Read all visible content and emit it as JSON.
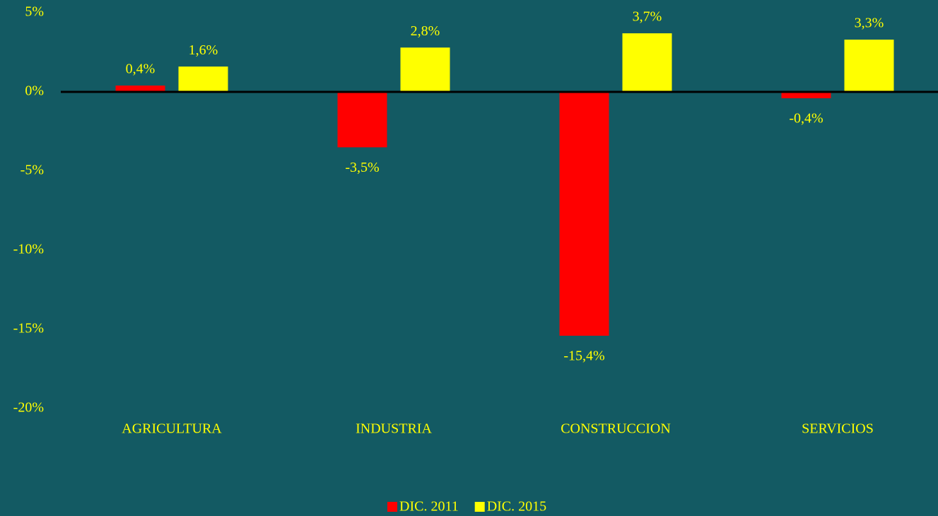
{
  "chart_data": {
    "type": "bar",
    "categories": [
      "AGRICULTURA",
      "INDUSTRIA",
      "CONSTRUCCION",
      "SERVICIOS"
    ],
    "series": [
      {
        "name": "DIC. 2011",
        "color": "#ff0000",
        "values": [
          0.4,
          -3.5,
          -15.4,
          -0.4
        ],
        "value_labels": [
          "0,4%",
          "-3,5%",
          "-15,4%",
          "-0,4%"
        ]
      },
      {
        "name": "DIC. 2015",
        "color": "#ffff00",
        "values": [
          1.6,
          2.8,
          3.7,
          3.3
        ],
        "value_labels": [
          "1,6%",
          "2,8%",
          "3,7%",
          "3,3%"
        ]
      }
    ],
    "ylim": [
      -20,
      5
    ],
    "yticks": [
      {
        "value": 5,
        "label": "5%"
      },
      {
        "value": 0,
        "label": "0%"
      },
      {
        "value": -5,
        "label": "-5%"
      },
      {
        "value": -10,
        "label": "-10%"
      },
      {
        "value": -15,
        "label": "-15%"
      },
      {
        "value": -20,
        "label": "-20%"
      }
    ],
    "grid": false,
    "legend": "bottom"
  }
}
